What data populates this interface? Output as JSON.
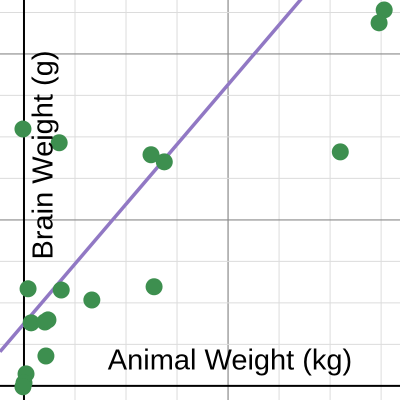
{
  "chart_data": {
    "type": "scatter",
    "x_label": "Animal Weight (kg)",
    "y_label": "Brain Weight (g)",
    "xlim": [
      -0.47,
      7.37
    ],
    "ylim": [
      -0.34,
      9.3
    ],
    "xticks": [
      1,
      2,
      3,
      4,
      5,
      6,
      7
    ],
    "yticks": [
      1,
      2,
      3,
      4,
      5,
      6,
      7,
      8,
      9
    ],
    "grid": true,
    "series": [
      {
        "color": "#3d8f4f",
        "x": [
          7.06,
          6.96,
          6.2,
          -0.02,
          0.69,
          2.49,
          2.75,
          0.08,
          0.73,
          1.33,
          2.55,
          0.14,
          0.41,
          0.47,
          0.43,
          0.04,
          0,
          -0.02
        ],
        "values": [
          9.06,
          8.75,
          5.64,
          6.19,
          5.86,
          5.57,
          5.4,
          2.34,
          2.31,
          2.07,
          2.39,
          1.52,
          1.54,
          1.59,
          0.72,
          0.29,
          0.07,
          -0.02
        ]
      }
    ],
    "trendline": {
      "slope": 1.44,
      "intercept": 1.5,
      "color": "#9178c4"
    }
  }
}
